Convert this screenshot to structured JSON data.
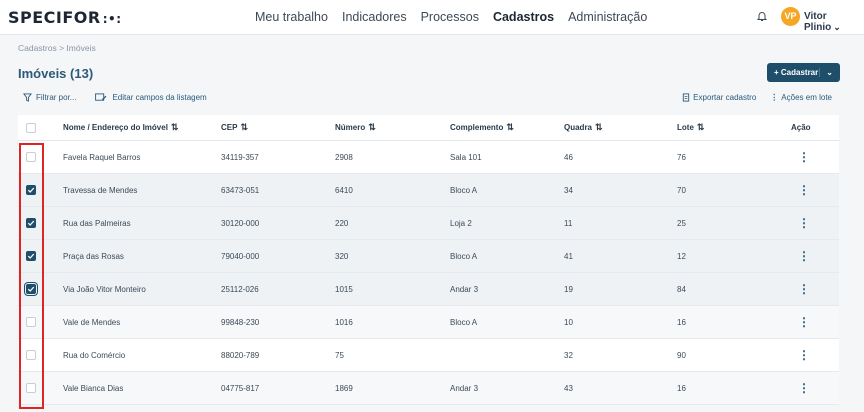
{
  "app": {
    "logo": "SPECIFOR",
    "logo_mark": ":•:"
  },
  "nav": {
    "items": [
      "Meu trabalho",
      "Indicadores",
      "Processos",
      "Cadastros",
      "Administração"
    ],
    "active": "Cadastros"
  },
  "user": {
    "initials": "VP",
    "name": "Vitor Plinio",
    "avatar_color": "#f5a623"
  },
  "breadcrumb": "Cadastros > Imóveis",
  "page": {
    "title": "Imóveis (13)",
    "register_label": "+ Cadastrar"
  },
  "toolbar": {
    "filter_label": "Filtrar por...",
    "edit_fields_label": "Editar campos da listagem",
    "export_label": "Exportar cadastro",
    "bulk_label": "Ações em lote"
  },
  "table": {
    "headers": {
      "name": "Nome / Endereço do Imóvel",
      "cep": "CEP",
      "number": "Número",
      "complement": "Complemento",
      "block": "Quadra",
      "lot": "Lote",
      "action": "Ação"
    },
    "rows": [
      {
        "name": "Favela Raquel Barros",
        "cep": "34119-357",
        "number": "2908",
        "complement": "Sala 101",
        "block": "46",
        "lot": "76",
        "checked": false
      },
      {
        "name": "Travessa de Mendes",
        "cep": "63473-051",
        "number": "6410",
        "complement": "Bloco A",
        "block": "34",
        "lot": "70",
        "checked": true
      },
      {
        "name": "Rua das Palmeiras",
        "cep": "30120-000",
        "number": "220",
        "complement": "Loja 2",
        "block": "11",
        "lot": "25",
        "checked": true
      },
      {
        "name": "Praça das Rosas",
        "cep": "79040-000",
        "number": "320",
        "complement": "Bloco A",
        "block": "41",
        "lot": "12",
        "checked": true
      },
      {
        "name": "Via João Vitor Monteiro",
        "cep": "25112-026",
        "number": "1015",
        "complement": "Andar 3",
        "block": "19",
        "lot": "84",
        "checked": true
      },
      {
        "name": "Vale de Mendes",
        "cep": "99848-230",
        "number": "1016",
        "complement": "Bloco A",
        "block": "10",
        "lot": "16",
        "checked": false
      },
      {
        "name": "Rua do Comércio",
        "cep": "88020-789",
        "number": "75",
        "complement": "",
        "block": "32",
        "lot": "90",
        "checked": false
      },
      {
        "name": "Vale Bianca Dias",
        "cep": "04775-817",
        "number": "1869",
        "complement": "Andar 3",
        "block": "43",
        "lot": "16",
        "checked": false
      }
    ]
  },
  "colors": {
    "primary": "#1f4e6b",
    "highlight": "#e02424"
  }
}
